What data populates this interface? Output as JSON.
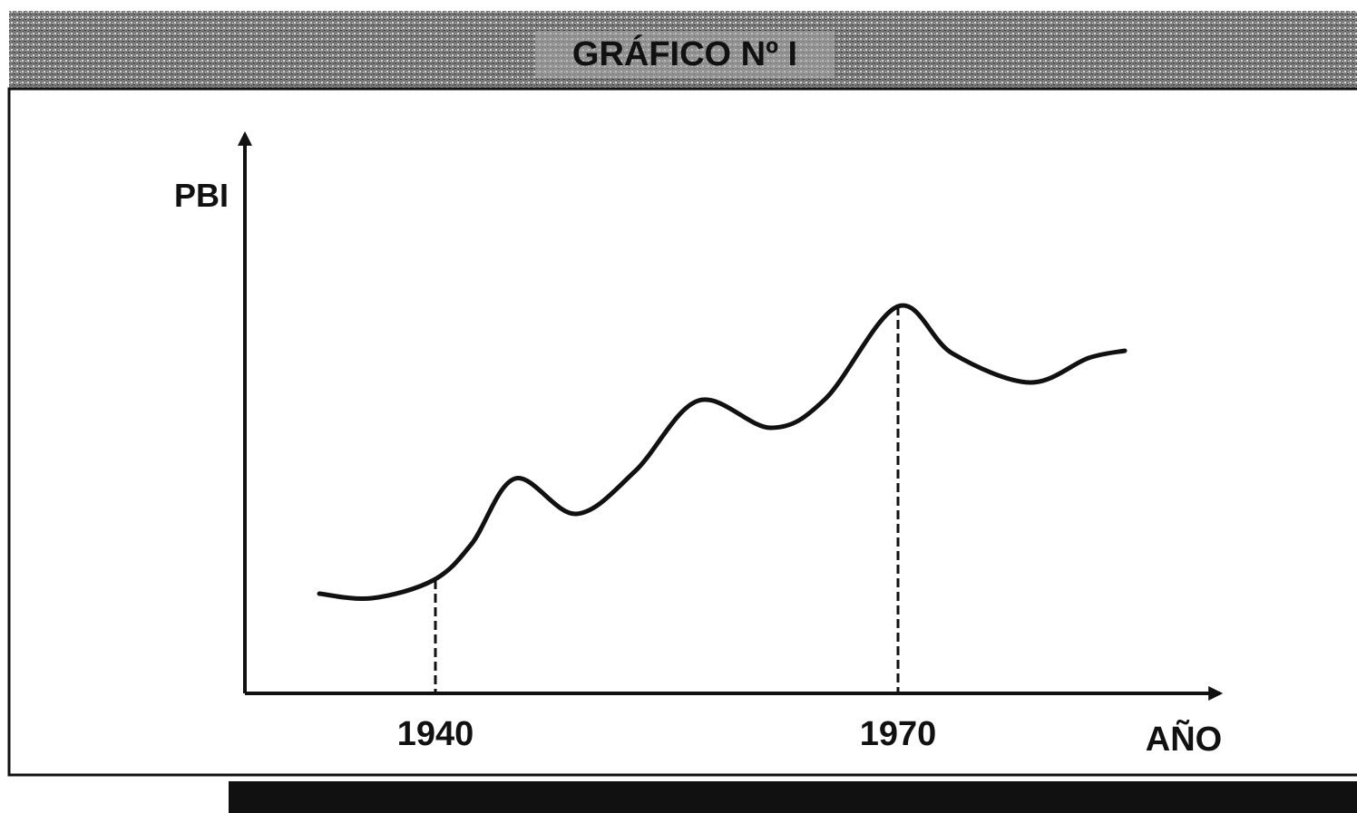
{
  "header": {
    "title": "GRÁFICO Nº I"
  },
  "diagram": {
    "y_axis_label": "PBI",
    "x_axis_label": "AÑO",
    "x_markers": [
      "1940",
      "1970"
    ]
  }
}
